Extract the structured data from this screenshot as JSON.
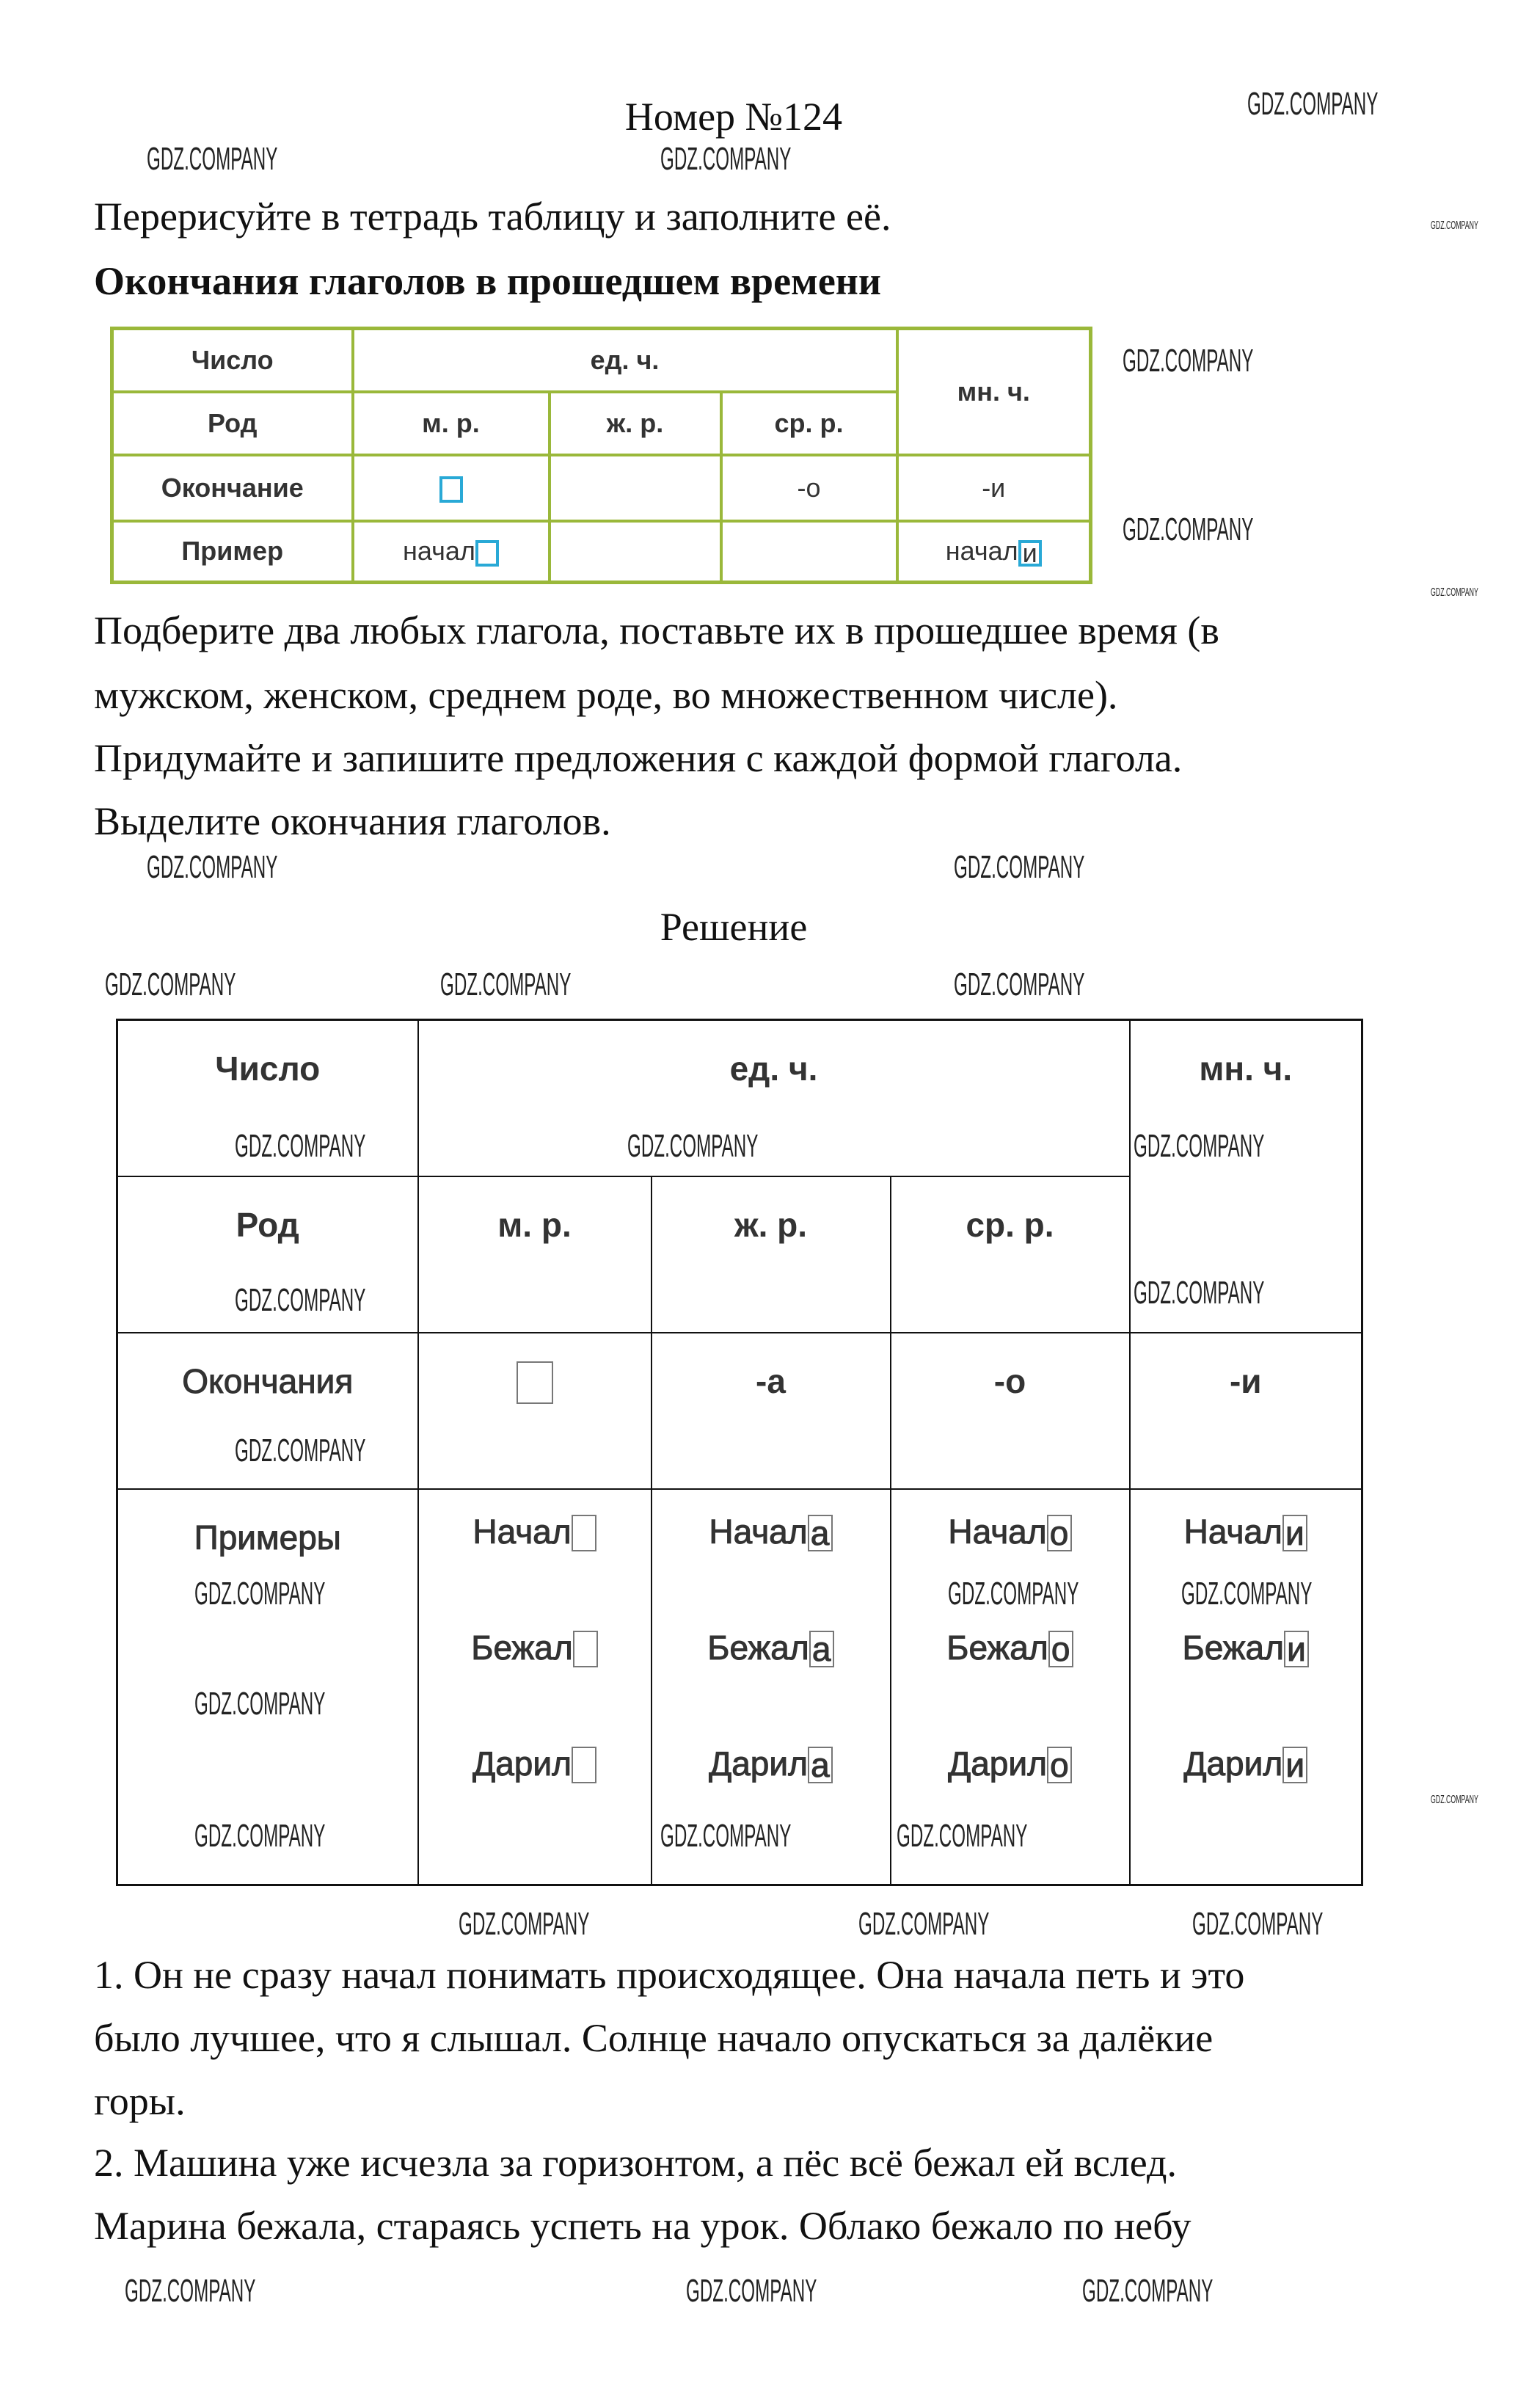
{
  "title": "Номер №124",
  "task": {
    "line1": "Перерисуйте в тетрадь таблицу и заполните её.",
    "heading": "Окончания глаголов в прошедшем времени",
    "para": [
      "Подберите два любых глагола, поставьте их в прошедшее время (в",
      "мужском, женском, среднем роде, во множественном числе).",
      "Придумайте и запишите предложения с каждой формой глагола.",
      "Выделите окончания глаголов."
    ]
  },
  "table1": {
    "number": "Число",
    "sing": "ед. ч.",
    "plural": "мн. ч.",
    "gender": "Род",
    "m": "м. р.",
    "f": "ж. р.",
    "n": "ср. р.",
    "ending": "Окончание",
    "end_n": "-о",
    "end_pl": "-и",
    "example": "Пример",
    "ex_m": "начал",
    "ex_pl": "начал",
    "ex_pl_box": "и"
  },
  "solution_title": "Решение",
  "table2": {
    "number": "Число",
    "sing": "ед. ч.",
    "plural": "мн. ч.",
    "gender": "Род",
    "m": "м. р.",
    "f": "ж. р.",
    "n": "ср. р.",
    "ending": "Окончания",
    "end_f": "-а",
    "end_n": "-о",
    "end_pl": "-и",
    "examples": "Примеры",
    "cols": [
      {
        "stems": [
          "Начал",
          "Бежал",
          "Дарил"
        ],
        "ending": ""
      },
      {
        "stems": [
          "Начал",
          "Бежал",
          "Дарил"
        ],
        "ending": "а"
      },
      {
        "stems": [
          "Начал",
          "Бежал",
          "Дарил"
        ],
        "ending": "о"
      },
      {
        "stems": [
          "Начал",
          "Бежал",
          "Дарил"
        ],
        "ending": "и"
      }
    ]
  },
  "answers": [
    "1. Он не сразу начал понимать происходящее. Она начала петь и это",
    "было лучшее, что я слышал. Солнце начало опускаться за далёкие",
    "горы.",
    "2. Машина уже исчезла за горизонтом, а пёс всё бежал ей вслед.",
    "Марина бежала, стараясь успеть на урок. Облако бежало по небу"
  ],
  "watermark": "GDZ.COMPANY",
  "colors": {
    "table1_border": "#9ab83a",
    "box": "#29a9d6"
  }
}
